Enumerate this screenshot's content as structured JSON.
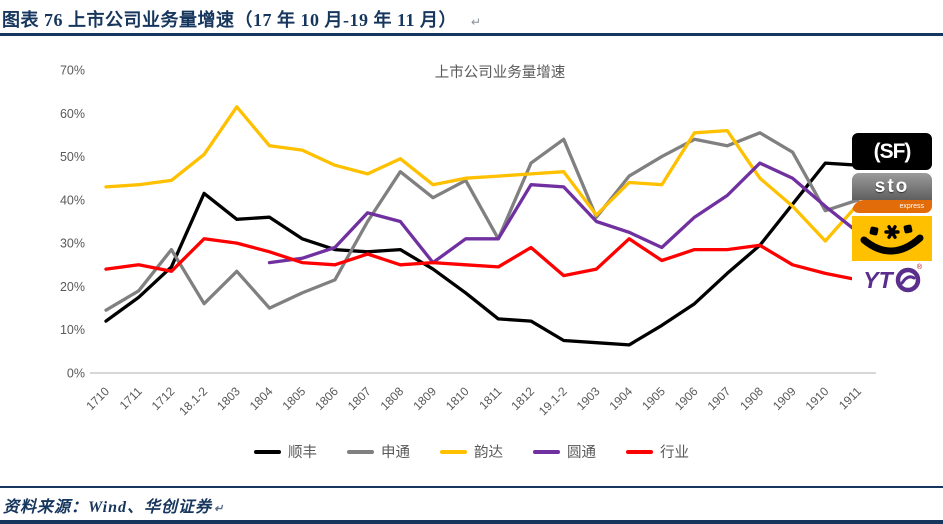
{
  "header": {
    "title": "图表 76 上市公司业务量增速（17 年 10 月-19 年 11 月）",
    "pilcrow": "↵"
  },
  "chart_data": {
    "type": "line",
    "title": "上市公司业务量增速",
    "categories": [
      "1710",
      "1711",
      "1712",
      "18.1-2",
      "1803",
      "1804",
      "1805",
      "1806",
      "1807",
      "1808",
      "1809",
      "1810",
      "1811",
      "1812",
      "19.1-2",
      "1903",
      "1904",
      "1905",
      "1906",
      "1907",
      "1908",
      "1909",
      "1910",
      "1911"
    ],
    "series": [
      {
        "name": "顺丰",
        "color": "#000000",
        "values": [
          12,
          17.5,
          24.5,
          41.5,
          35.5,
          36,
          31,
          28.5,
          28,
          28.5,
          24,
          18.5,
          12.5,
          12,
          7.5,
          7,
          6.5,
          11,
          16,
          23,
          29.5,
          39,
          48.5,
          48
        ]
      },
      {
        "name": "申通",
        "color": "#808080",
        "values": [
          14.5,
          19,
          28.5,
          16,
          23.5,
          15,
          18.5,
          21.5,
          35,
          46.5,
          40.5,
          44.5,
          31,
          48.5,
          54,
          36,
          45.5,
          50,
          54,
          52.5,
          55.5,
          51,
          37.5,
          40
        ]
      },
      {
        "name": "韵达",
        "color": "#FFC000",
        "values": [
          43,
          43.5,
          44.5,
          50.5,
          61.5,
          52.5,
          51.5,
          48,
          46,
          49.5,
          43.5,
          45,
          45.5,
          46,
          46.5,
          36.5,
          44,
          43.5,
          55.5,
          56,
          45,
          38.5,
          30.5,
          39
        ]
      },
      {
        "name": "圆通",
        "color": "#7030A0",
        "values": [
          null,
          null,
          null,
          null,
          null,
          25.5,
          26.5,
          29,
          37,
          35,
          25.5,
          31,
          31,
          43.5,
          43,
          35,
          32.5,
          29,
          36,
          41,
          48.5,
          45,
          38.5,
          32.5
        ]
      },
      {
        "name": "行业",
        "color": "#FF0000",
        "values": [
          24,
          25,
          23.5,
          31,
          30,
          28,
          25.5,
          25,
          27.5,
          25,
          25.5,
          25,
          24.5,
          29,
          22.5,
          24,
          31,
          26,
          28.5,
          28.5,
          29.5,
          25,
          23,
          21.5
        ]
      }
    ],
    "ylim": [
      0,
      70
    ],
    "ytick_step": 10,
    "ytick_suffix": "%",
    "grid": false,
    "legend_position": "bottom",
    "axis_color": "#BFBFBF",
    "label_color": "#595959"
  },
  "logos": [
    {
      "name": "sf-express",
      "text": "(SF)"
    },
    {
      "name": "sto-express",
      "text": "sto",
      "subtext": "express"
    },
    {
      "name": "yunda-express",
      "text": ""
    },
    {
      "name": "yto-express",
      "text": "YT",
      "reg": "®"
    }
  ],
  "footer": {
    "source": "资料来源：Wind、华创证券",
    "pilcrow": "↵"
  }
}
